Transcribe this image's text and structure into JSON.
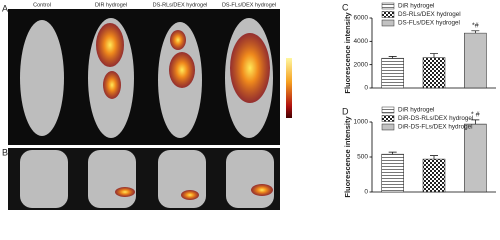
{
  "figure": {
    "panel_a": "A",
    "panel_b": "B",
    "columns": [
      "Control",
      "DIR hydrogel",
      "DS-RLs/DEX hydrogel",
      "DS-FLs/DEX hydrogel"
    ]
  },
  "chart_data": [
    {
      "type": "bar",
      "panel": "C",
      "ylabel": "Fluorescence intensity",
      "annotation": "*#",
      "ylim": [
        0,
        6000
      ],
      "yticks": [
        0,
        2000,
        4000,
        6000
      ],
      "series": [
        {
          "name": "DiR hydrogel",
          "pattern": "lines",
          "values": [
            2550
          ],
          "errors": [
            150
          ]
        },
        {
          "name": "DS-RLs/DEX hydrogel",
          "pattern": "checker",
          "values": [
            2600
          ],
          "errors": [
            350
          ]
        },
        {
          "name": "DS-FLs/DEX hydrogel",
          "pattern": "dense-lines",
          "values": [
            4700
          ],
          "errors": [
            200
          ]
        }
      ]
    },
    {
      "type": "bar",
      "panel": "D",
      "ylabel": "Fluorescence intensity",
      "annotation": "* #",
      "ylim": [
        0,
        1000
      ],
      "yticks": [
        0,
        500,
        1000
      ],
      "series": [
        {
          "name": "DiR hydrogel",
          "pattern": "lines",
          "values": [
            540
          ],
          "errors": [
            30
          ]
        },
        {
          "name": "DiR-DS-RLs/DEX hydrogel",
          "pattern": "checker",
          "values": [
            470
          ],
          "errors": [
            50
          ]
        },
        {
          "name": "DiR-DS-FLs/DEX hydrogel",
          "pattern": "dense-lines",
          "values": [
            970
          ],
          "errors": [
            60
          ]
        }
      ]
    }
  ]
}
